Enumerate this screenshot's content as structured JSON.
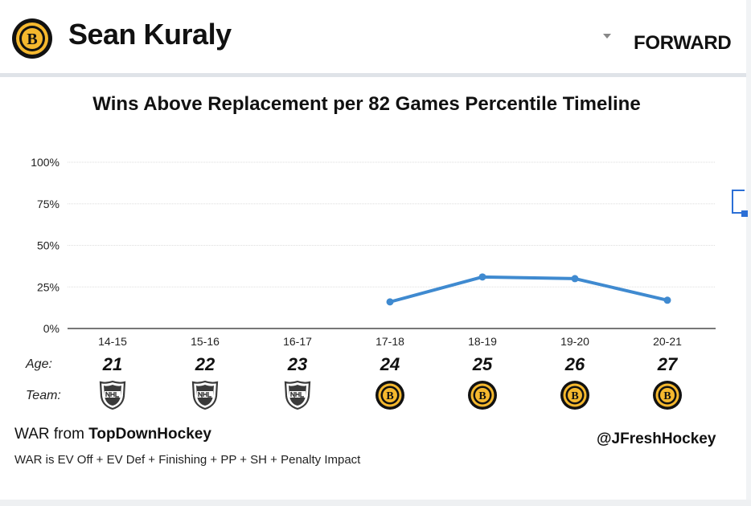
{
  "header": {
    "player_name": "Sean Kuraly",
    "position": "FORWARD",
    "team_logo": "bruins-logo",
    "dropdown_icon": "chevron-down-icon"
  },
  "colors": {
    "line": "#3f8ad0",
    "bruins_gold": "#f5b82e",
    "bruins_black": "#111111",
    "nhl_gray": "#3a3a3a",
    "grid": "#dddddd"
  },
  "chart_data": {
    "type": "line",
    "title": "Wins Above Replacement per 82 Games Percentile Timeline",
    "categories": [
      "14-15",
      "15-16",
      "16-17",
      "17-18",
      "18-19",
      "19-20",
      "20-21"
    ],
    "y_ticks": [
      "0%",
      "25%",
      "50%",
      "75%",
      "100%"
    ],
    "ylim": [
      0,
      100
    ],
    "grid": true,
    "series": [
      {
        "values": [
          null,
          null,
          null,
          16,
          31,
          30,
          17
        ]
      }
    ]
  },
  "rows": {
    "age_label": "Age:",
    "team_label": "Team:",
    "ages": [
      "21",
      "22",
      "23",
      "24",
      "25",
      "26",
      "27"
    ],
    "teams": [
      "nhl",
      "nhl",
      "nhl",
      "bruins",
      "bruins",
      "bruins",
      "bruins"
    ]
  },
  "footer": {
    "war_prefix": "WAR from ",
    "war_source": "TopDownHockey",
    "war_note": "WAR is EV Off + EV Def + Finishing + PP + SH + Penalty Impact",
    "handle": "@JFreshHockey"
  }
}
